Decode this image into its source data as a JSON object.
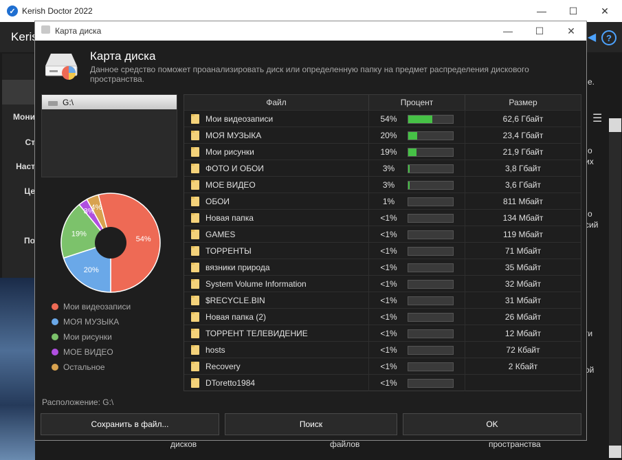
{
  "main_window": {
    "title": "Kerish Doctor 2022",
    "app_name_partial": "Keris",
    "sidebar_partial": [
      "Мони",
      "Ст",
      "Наст",
      "Це",
      "По"
    ],
    "right_partial": [
      "е.",
      "их",
      "о",
      "о",
      "сий",
      "ги",
      "ой"
    ],
    "bottom_partial": [
      "дисков",
      "файлов",
      "пространства"
    ]
  },
  "dialog": {
    "title": "Карта диска",
    "heading": "Карта диска",
    "description": "Данное средство поможет проанализировать диск или определенную папку на предмет распределения дискового пространства.",
    "drive": "G:\\",
    "location_label": "Расположение: G:\\",
    "buttons": {
      "save": "Сохранить в файл...",
      "search": "Поиск",
      "ok": "OK"
    }
  },
  "table": {
    "columns": [
      "Файл",
      "Процент",
      "Размер"
    ],
    "rows": [
      {
        "name": "Мои видеозаписи",
        "percent": "54%",
        "fill": 0.54,
        "size": "62,6 Гбайт"
      },
      {
        "name": "МОЯ МУЗЫКА",
        "percent": "20%",
        "fill": 0.2,
        "size": "23,4 Гбайт"
      },
      {
        "name": "Мои рисунки",
        "percent": "19%",
        "fill": 0.19,
        "size": "21,9 Гбайт"
      },
      {
        "name": "ФОТО И ОБОИ",
        "percent": "3%",
        "fill": 0.03,
        "size": "3,8 Гбайт"
      },
      {
        "name": "МОЕ ВИДЕО",
        "percent": "3%",
        "fill": 0.03,
        "size": "3,6 Гбайт"
      },
      {
        "name": "ОБОИ",
        "percent": "1%",
        "fill": 0.0,
        "size": "811 Мбайт"
      },
      {
        "name": "Новая папка",
        "percent": "<1%",
        "fill": 0,
        "size": "134 Мбайт"
      },
      {
        "name": "GAMES",
        "percent": "<1%",
        "fill": 0,
        "size": "119 Мбайт"
      },
      {
        "name": "ТОРРЕНТЫ",
        "percent": "<1%",
        "fill": 0,
        "size": "71 Мбайт"
      },
      {
        "name": "вязники природа",
        "percent": "<1%",
        "fill": 0,
        "size": "35 Мбайт"
      },
      {
        "name": "System Volume Information",
        "percent": "<1%",
        "fill": 0,
        "size": "32 Мбайт"
      },
      {
        "name": "$RECYCLE.BIN",
        "percent": "<1%",
        "fill": 0,
        "size": "31 Мбайт"
      },
      {
        "name": "Новая папка (2)",
        "percent": "<1%",
        "fill": 0,
        "size": "26 Мбайт"
      },
      {
        "name": "ТОРРЕНТ ТЕЛЕВИДЕНИЕ",
        "percent": "<1%",
        "fill": 0,
        "size": "12 Мбайт"
      },
      {
        "name": "hosts",
        "percent": "<1%",
        "fill": 0,
        "size": "72 Кбайт"
      },
      {
        "name": "Recovery",
        "percent": "<1%",
        "fill": 0,
        "size": "2 Кбайт"
      },
      {
        "name": "DToretto1984",
        "percent": "<1%",
        "fill": 0,
        "size": ""
      }
    ]
  },
  "chart_data": {
    "type": "pie",
    "categories": [
      "Мои видеозаписи",
      "МОЯ МУЗЫКА",
      "Мои рисунки",
      "МОЕ ВИДЕО",
      "Остальное"
    ],
    "values": [
      54,
      20,
      19,
      3,
      4
    ],
    "labels": [
      "54%",
      "20%",
      "19%",
      "3%",
      "4%"
    ],
    "colors": [
      "#ee6a55",
      "#6aa8e8",
      "#7cc26b",
      "#b04fe0",
      "#d8a24f"
    ]
  },
  "colors": {
    "accent": "#46c146",
    "folder": "#f4d27a",
    "link": "#4da3ff"
  },
  "icons": {
    "app": "check-circle-icon",
    "minimize": "minimize-icon",
    "maximize": "maximize-icon",
    "close": "close-icon",
    "sound": "speaker-icon",
    "help": "help-icon",
    "disk": "disk-chart-icon",
    "drive": "drive-icon",
    "folder": "folder-icon",
    "menu": "hamburger-menu-icon"
  }
}
